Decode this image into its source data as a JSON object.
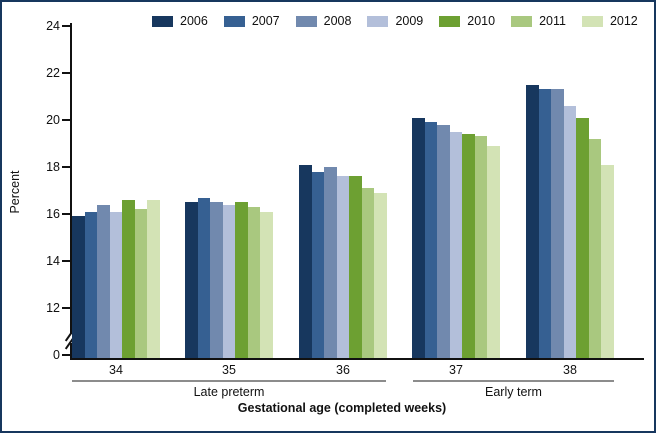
{
  "chart_data": {
    "type": "bar",
    "title": "",
    "ylabel": "Percent",
    "xlabel": "Gestational age (completed weeks)",
    "categories": [
      "34",
      "35",
      "36",
      "37",
      "38"
    ],
    "series": [
      {
        "name": "2006",
        "color": "#17375E",
        "values": [
          15.9,
          16.5,
          18.1,
          20.1,
          21.5
        ]
      },
      {
        "name": "2007",
        "color": "#366092",
        "values": [
          16.1,
          16.7,
          17.8,
          19.9,
          21.3
        ]
      },
      {
        "name": "2008",
        "color": "#7189AE",
        "values": [
          16.4,
          16.5,
          18.0,
          19.8,
          21.3
        ]
      },
      {
        "name": "2009",
        "color": "#B3BFDA",
        "values": [
          16.1,
          16.4,
          17.6,
          19.5,
          20.6
        ]
      },
      {
        "name": "2010",
        "color": "#6DA032",
        "values": [
          16.6,
          16.5,
          17.6,
          19.4,
          20.1
        ]
      },
      {
        "name": "2011",
        "color": "#A9C87F",
        "values": [
          16.2,
          16.3,
          17.1,
          19.3,
          19.2
        ]
      },
      {
        "name": "2012",
        "color": "#D3E3B5",
        "values": [
          16.6,
          16.1,
          16.9,
          18.9,
          18.1
        ]
      }
    ],
    "y_ticks": [
      0,
      12,
      14,
      16,
      18,
      20,
      22,
      24
    ],
    "ylim": [
      0,
      24
    ],
    "axis_break_between": [
      0,
      12
    ],
    "legend_position": "top",
    "grid": "off",
    "group_spans": [
      {
        "label": "Late preterm",
        "from": "34",
        "to": "36"
      },
      {
        "label": "Early term",
        "from": "37",
        "to": "38"
      }
    ]
  }
}
